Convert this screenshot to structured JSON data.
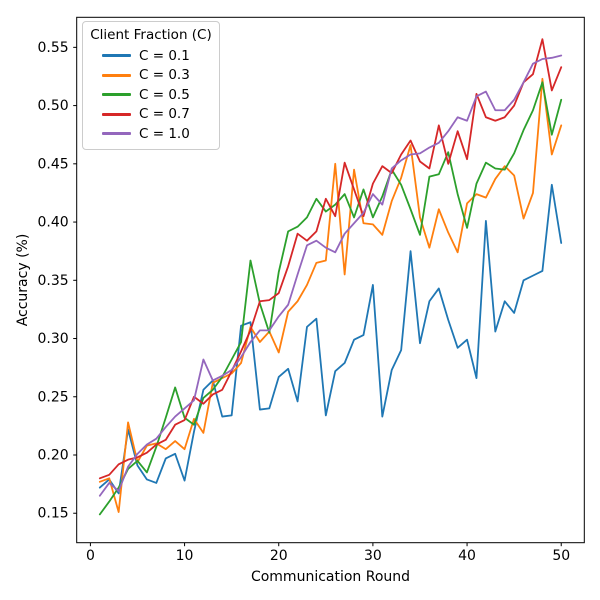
{
  "figure": {
    "background": "#ffffff",
    "spine_color": "#000000",
    "text_color": "#000000"
  },
  "legend": {
    "title": "Client Fraction (C)"
  },
  "chart_data": {
    "type": "line",
    "title": "",
    "xlabel": "Communication Round",
    "ylabel": "Accuracy (%)",
    "xlim": [
      -1.455,
      52.45
    ],
    "ylim": [
      0.1247,
      0.5758
    ],
    "grid": false,
    "legend_position": "upper-left",
    "x_ticks": [
      {
        "v": 0,
        "label": "0"
      },
      {
        "v": 10,
        "label": "10"
      },
      {
        "v": 20,
        "label": "20"
      },
      {
        "v": 30,
        "label": "30"
      },
      {
        "v": 40,
        "label": "40"
      },
      {
        "v": 50,
        "label": "50"
      }
    ],
    "y_ticks": [
      {
        "v": 0.15,
        "label": "0.15"
      },
      {
        "v": 0.2,
        "label": "0.20"
      },
      {
        "v": 0.25,
        "label": "0.25"
      },
      {
        "v": 0.3,
        "label": "0.30"
      },
      {
        "v": 0.35,
        "label": "0.35"
      },
      {
        "v": 0.4,
        "label": "0.40"
      },
      {
        "v": 0.45,
        "label": "0.45"
      },
      {
        "v": 0.5,
        "label": "0.50"
      },
      {
        "v": 0.55,
        "label": "0.55"
      }
    ],
    "x_start": 1,
    "series": [
      {
        "name": "C = 0.1",
        "color": "#1f77b4",
        "values": [
          0.172,
          0.179,
          0.167,
          0.222,
          0.191,
          0.179,
          0.176,
          0.197,
          0.201,
          0.178,
          0.22,
          0.256,
          0.264,
          0.233,
          0.234,
          0.311,
          0.314,
          0.239,
          0.24,
          0.267,
          0.274,
          0.246,
          0.31,
          0.317,
          0.234,
          0.272,
          0.279,
          0.299,
          0.303,
          0.346,
          0.233,
          0.273,
          0.29,
          0.375,
          0.296,
          0.332,
          0.343,
          0.316,
          0.292,
          0.299,
          0.266,
          0.401,
          0.306,
          0.332,
          0.322,
          0.35,
          0.354,
          0.358,
          0.432,
          0.382
        ]
      },
      {
        "name": "C = 0.3",
        "color": "#ff7f0e",
        "values": [
          0.177,
          0.18,
          0.151,
          0.228,
          0.194,
          0.208,
          0.21,
          0.205,
          0.212,
          0.205,
          0.231,
          0.219,
          0.262,
          0.266,
          0.27,
          0.279,
          0.31,
          0.297,
          0.306,
          0.288,
          0.323,
          0.332,
          0.346,
          0.365,
          0.367,
          0.45,
          0.355,
          0.445,
          0.399,
          0.398,
          0.389,
          0.418,
          0.438,
          0.466,
          0.404,
          0.378,
          0.411,
          0.391,
          0.374,
          0.416,
          0.424,
          0.421,
          0.437,
          0.448,
          0.44,
          0.403,
          0.425,
          0.523,
          0.458,
          0.483
        ]
      },
      {
        "name": "C = 0.5",
        "color": "#2ca02c",
        "values": [
          0.149,
          0.16,
          0.172,
          0.188,
          0.195,
          0.185,
          0.207,
          0.232,
          0.258,
          0.232,
          0.226,
          0.249,
          0.256,
          0.267,
          0.282,
          0.297,
          0.367,
          0.33,
          0.305,
          0.357,
          0.392,
          0.396,
          0.404,
          0.42,
          0.409,
          0.415,
          0.424,
          0.404,
          0.428,
          0.404,
          0.422,
          0.445,
          0.432,
          0.411,
          0.389,
          0.439,
          0.441,
          0.46,
          0.424,
          0.395,
          0.433,
          0.451,
          0.446,
          0.445,
          0.459,
          0.479,
          0.496,
          0.52,
          0.475,
          0.505
        ]
      },
      {
        "name": "C = 0.7",
        "color": "#d62728",
        "values": [
          0.18,
          0.183,
          0.192,
          0.196,
          0.198,
          0.202,
          0.209,
          0.213,
          0.226,
          0.23,
          0.25,
          0.244,
          0.252,
          0.256,
          0.272,
          0.289,
          0.307,
          0.332,
          0.333,
          0.339,
          0.362,
          0.39,
          0.384,
          0.392,
          0.42,
          0.405,
          0.451,
          0.428,
          0.405,
          0.433,
          0.448,
          0.442,
          0.458,
          0.47,
          0.452,
          0.446,
          0.483,
          0.45,
          0.478,
          0.454,
          0.51,
          0.49,
          0.487,
          0.49,
          0.5,
          0.52,
          0.527,
          0.557,
          0.513,
          0.533
        ]
      },
      {
        "name": "C = 1.0",
        "color": "#9467bd",
        "values": [
          0.165,
          0.176,
          0.169,
          0.19,
          0.201,
          0.209,
          0.214,
          0.224,
          0.233,
          0.24,
          0.247,
          0.282,
          0.264,
          0.268,
          0.273,
          0.284,
          0.297,
          0.307,
          0.307,
          0.319,
          0.329,
          0.355,
          0.38,
          0.384,
          0.378,
          0.374,
          0.39,
          0.399,
          0.408,
          0.424,
          0.415,
          0.446,
          0.453,
          0.458,
          0.459,
          0.464,
          0.468,
          0.478,
          0.49,
          0.487,
          0.508,
          0.512,
          0.496,
          0.496,
          0.505,
          0.52,
          0.536,
          0.54,
          0.541,
          0.543
        ]
      }
    ]
  }
}
